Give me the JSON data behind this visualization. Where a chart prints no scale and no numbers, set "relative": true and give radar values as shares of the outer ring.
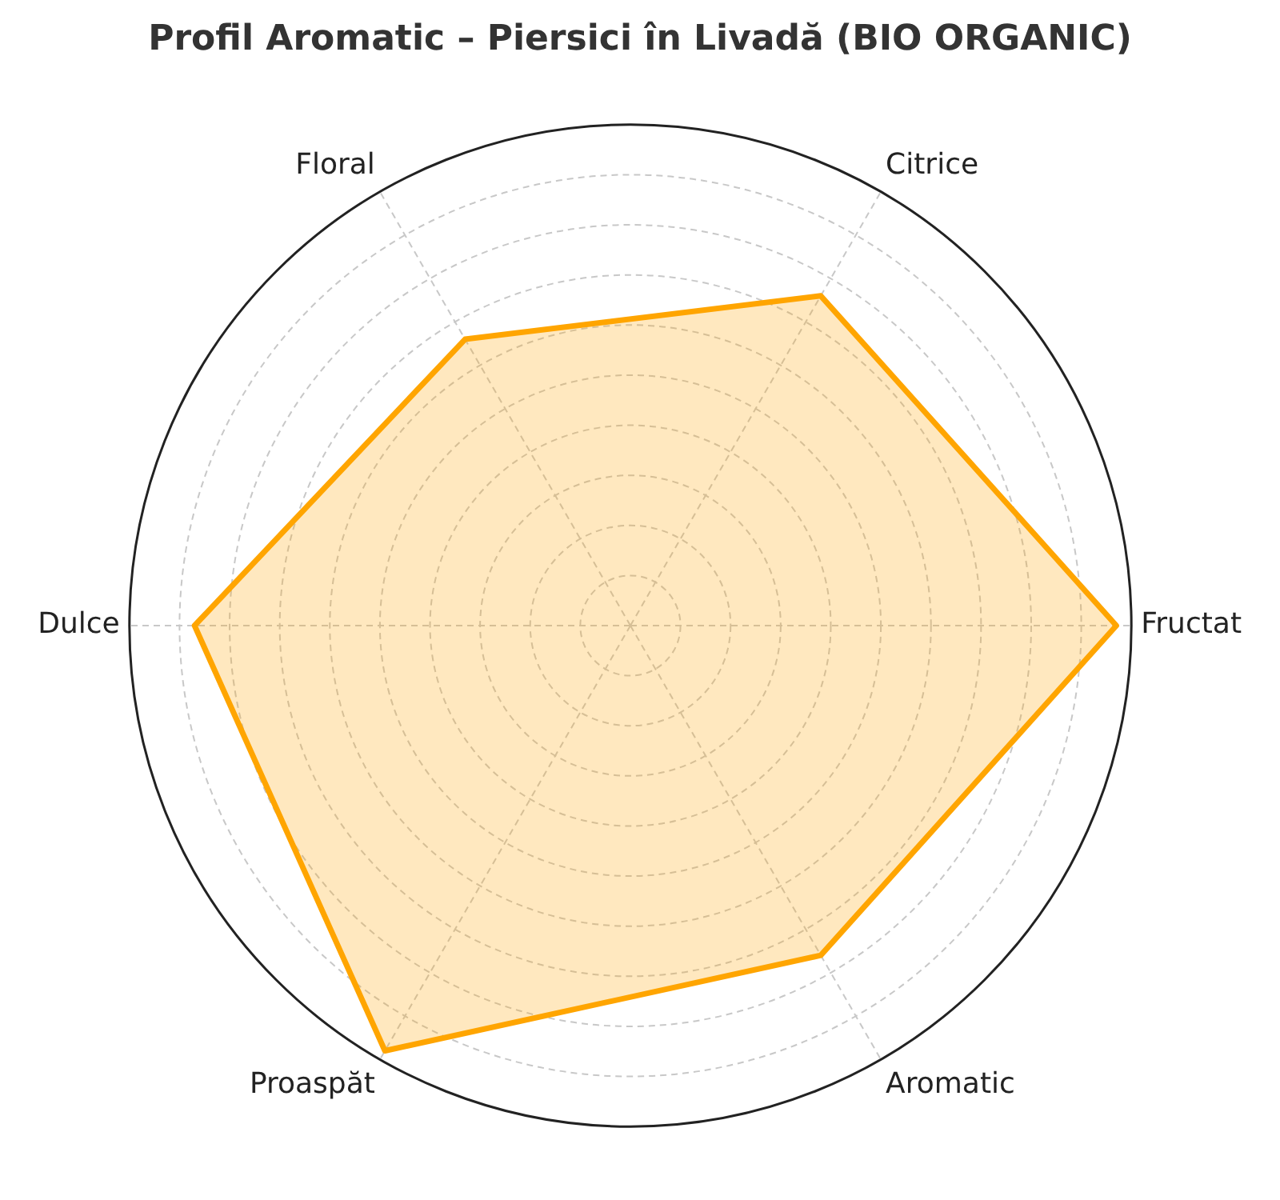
{
  "chart_data": {
    "type": "radar",
    "title": "Profil Aromatic – Piersici în Livadă (BIO ORGANIC)",
    "categories": [
      "Citrice",
      "Fructat",
      "Aromatic",
      "Proaspăt",
      "Dulce",
      "Floral"
    ],
    "relative": true,
    "grid": true,
    "legend": false,
    "marker": "none",
    "line_style": "solid",
    "series": [
      {
        "color": "#ffa500",
        "values": [
          0.76,
          0.97,
          0.76,
          0.98,
          0.87,
          0.66
        ]
      }
    ]
  }
}
